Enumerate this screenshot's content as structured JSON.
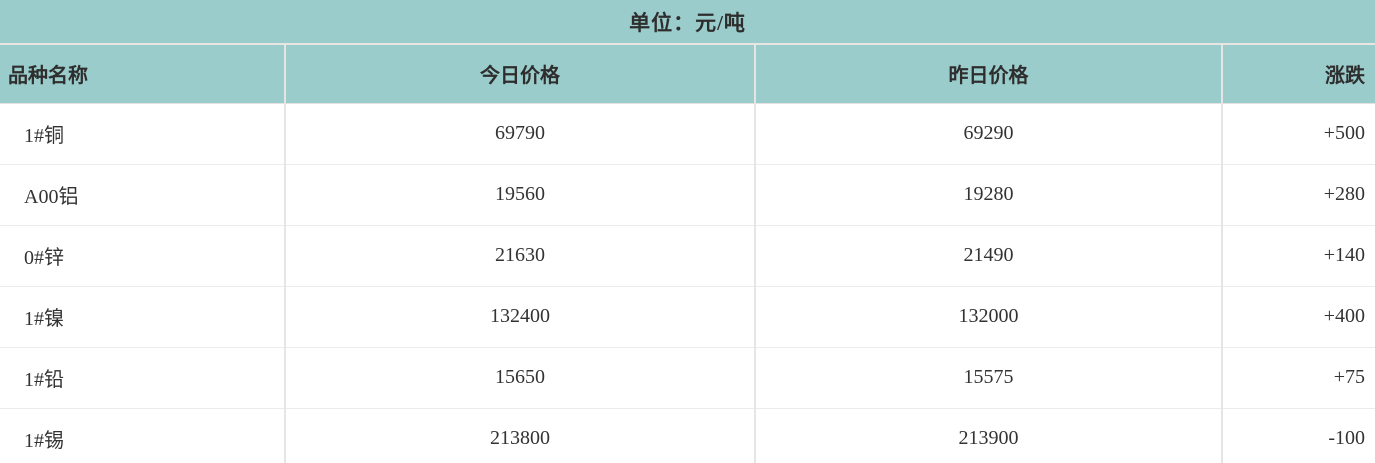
{
  "chart_data": {
    "type": "table",
    "title": "单位：元/吨",
    "columns": [
      "品种名称",
      "今日价格",
      "昨日价格",
      "涨跌"
    ],
    "rows": [
      [
        "1#铜",
        "69790",
        "69290",
        "+500"
      ],
      [
        "A00铝",
        "19560",
        "19280",
        "+280"
      ],
      [
        "0#锌",
        "21630",
        "21490",
        "+140"
      ],
      [
        "1#镍",
        "132400",
        "132000",
        "+400"
      ],
      [
        "1#铅",
        "15650",
        "15575",
        "+75"
      ],
      [
        "1#锡",
        "213800",
        "213900",
        "-100"
      ]
    ]
  },
  "colors": {
    "header_bg": "#99ccca",
    "divider_on_teal": "#e8e6e3",
    "divider_on_white": "#ebebeb",
    "text": "#333333"
  }
}
